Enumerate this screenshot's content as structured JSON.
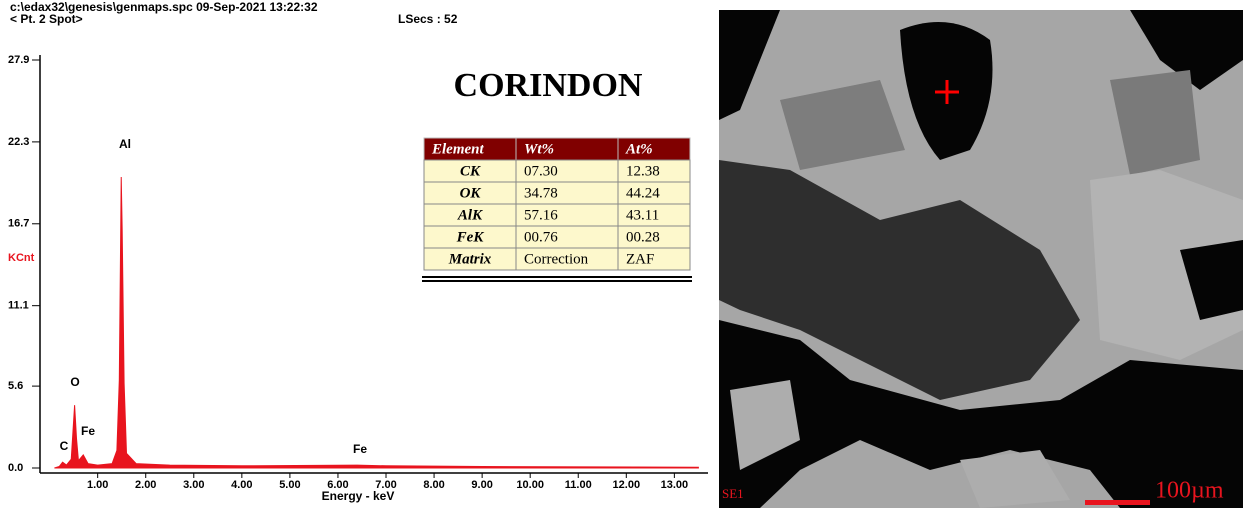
{
  "header": {
    "file": "c:\\edax32\\genesis\\genmaps.spc  09-Sep-2021 13:22:32",
    "spot": "< Pt.  2 Spot>",
    "lsecs": "LSecs :  52"
  },
  "chart_data": {
    "type": "area",
    "title": "CORINDON",
    "x_label": "Energy - keV",
    "y_label": "KCnt",
    "color": "#e8141e",
    "x": [
      0.1,
      0.2,
      0.27,
      0.35,
      0.45,
      0.52,
      0.56,
      0.6,
      0.7,
      0.8,
      1.0,
      1.3,
      1.4,
      1.45,
      1.49,
      1.51,
      1.55,
      1.6,
      1.8,
      2.5,
      4.0,
      6.4,
      7.0,
      9.0,
      13.5
    ],
    "values": [
      0,
      0.1,
      0.4,
      0.2,
      0.6,
      4.3,
      2.0,
      0.5,
      0.9,
      0.3,
      0.2,
      0.3,
      1.2,
      6.0,
      19.9,
      16.3,
      5.8,
      1.0,
      0.3,
      0.2,
      0.15,
      0.2,
      0.15,
      0.1,
      0.05
    ],
    "xlim": [
      -0.2,
      13.7
    ],
    "ylim": [
      0,
      27.9
    ],
    "xticks": [
      {
        "value": 1,
        "label": "1.00"
      },
      {
        "value": 2,
        "label": "2.00"
      },
      {
        "value": 3,
        "label": "3.00"
      },
      {
        "value": 4,
        "label": "4.00"
      },
      {
        "value": 5,
        "label": "5.00"
      },
      {
        "value": 6,
        "label": "6.00"
      },
      {
        "value": 7,
        "label": "7.00"
      },
      {
        "value": 8,
        "label": "8.00"
      },
      {
        "value": 9,
        "label": "9.00"
      },
      {
        "value": 10,
        "label": "10.00"
      },
      {
        "value": 11,
        "label": "11.00"
      },
      {
        "value": 12,
        "label": "12.00"
      },
      {
        "value": 13,
        "label": "13.00"
      }
    ],
    "yticks": [
      {
        "value": 0,
        "label": "0.0"
      },
      5.6,
      11.1,
      16.7,
      22.3,
      27.9
    ],
    "peak_labels": [
      "Al",
      "O",
      "Fe",
      "C",
      "Fe"
    ]
  },
  "table": {
    "header": [
      "Element",
      "Wt%",
      "At%"
    ],
    "rows": [
      [
        "CK",
        "07.30",
        "12.38"
      ],
      [
        "OK",
        "34.78",
        "44.24"
      ],
      [
        "AlK",
        "57.16",
        "43.11"
      ],
      [
        "FeK",
        "00.76",
        "00.28"
      ],
      [
        "Matrix",
        "Correction",
        "ZAF"
      ]
    ]
  },
  "image": {
    "detector": "SE1",
    "scale": "100µm"
  }
}
